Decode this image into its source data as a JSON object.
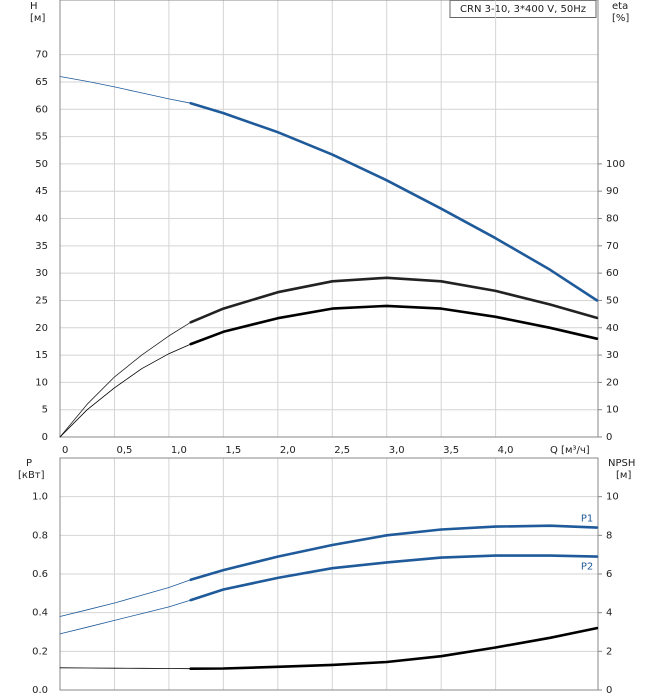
{
  "chart_data": [
    {
      "type": "line",
      "legend_text": "CRN 3-10, 3*400 V, 50Hz",
      "y_label": "H",
      "y_unit": "[м]",
      "y2_label": "eta",
      "y2_unit": "[%]",
      "x_label": "Q [м³/ч]",
      "x": [
        0,
        0.25,
        0.5,
        0.75,
        1.0,
        1.2,
        1.5,
        2.0,
        2.5,
        3.0,
        3.5,
        4.0,
        4.5,
        4.93
      ],
      "bold_from": 1.2,
      "xlim": [
        0,
        4.94
      ],
      "xticks": [
        0,
        {
          "value": 0.5,
          "label": "0,5"
        },
        {
          "value": 1.0,
          "label": "1,0"
        },
        {
          "value": 1.5,
          "label": "1,5"
        },
        {
          "value": 2.0,
          "label": "2,0"
        },
        {
          "value": 2.5,
          "label": "2,5"
        },
        {
          "value": 3.0,
          "label": "3,0"
        },
        {
          "value": 3.5,
          "label": "3,5"
        },
        {
          "value": 4.0,
          "label": "4,0"
        }
      ],
      "ylim": [
        0,
        80
      ],
      "yticks": [
        0,
        5,
        10,
        15,
        20,
        25,
        30,
        35,
        40,
        45,
        50,
        55,
        60,
        65,
        70
      ],
      "y2lim": [
        0,
        160
      ],
      "y2ticks": [
        0,
        10,
        20,
        30,
        40,
        50,
        60,
        70,
        80,
        90,
        100
      ],
      "grid": true,
      "series": [
        {
          "color": "#1f5a9a",
          "axis": "y",
          "values": [
            66,
            65.1,
            64.1,
            63,
            61.9,
            61.1,
            59.3,
            55.8,
            51.7,
            47,
            41.8,
            36.4,
            30.6,
            25
          ]
        },
        {
          "color": "#222222",
          "axis": "y2",
          "values": [
            0,
            12,
            22,
            30,
            37,
            42,
            47,
            53,
            57,
            58.3,
            57,
            53.5,
            48.5,
            43.6
          ]
        },
        {
          "color": "#000000",
          "axis": "y2",
          "values": [
            0,
            10,
            18,
            25,
            30.5,
            34,
            38.5,
            43.5,
            47,
            48,
            47,
            44,
            40,
            36
          ]
        }
      ]
    },
    {
      "type": "line",
      "y_label": "P",
      "y_unit": "[кВт]",
      "y2_label": "NPSH",
      "y2_unit": "[м]",
      "x": [
        0,
        0.25,
        0.5,
        0.75,
        1.0,
        1.2,
        1.5,
        2.0,
        2.5,
        3.0,
        3.5,
        4.0,
        4.5,
        4.93
      ],
      "bold_from": 1.2,
      "xlim": [
        0,
        4.94
      ],
      "xticks": [
        0,
        0.5,
        1.0,
        1.5,
        2.0,
        2.5,
        3.0,
        3.5,
        4.0
      ],
      "ylim": [
        0,
        1.2
      ],
      "yticks": [
        {
          "value": 0,
          "label": "0.0"
        },
        0.2,
        0.4,
        0.6,
        0.8,
        {
          "value": 1,
          "label": "1.0"
        }
      ],
      "y2lim": [
        0,
        12
      ],
      "y2ticks": [
        0,
        2,
        4,
        6,
        8,
        10
      ],
      "grid": true,
      "series": [
        {
          "name": "P1",
          "color": "#1f5a9a",
          "axis": "y",
          "values": [
            0.38,
            0.415,
            0.45,
            0.49,
            0.53,
            0.57,
            0.62,
            0.69,
            0.75,
            0.8,
            0.83,
            0.845,
            0.85,
            0.84
          ]
        },
        {
          "name": "P2",
          "color": "#1f5a9a",
          "axis": "y",
          "values": [
            0.29,
            0.325,
            0.36,
            0.395,
            0.43,
            0.465,
            0.52,
            0.58,
            0.63,
            0.66,
            0.685,
            0.695,
            0.695,
            0.69
          ]
        },
        {
          "color": "#000000",
          "axis": "y2",
          "values": [
            1.15,
            1.14,
            1.13,
            1.12,
            1.11,
            1.1,
            1.11,
            1.2,
            1.3,
            1.45,
            1.75,
            2.2,
            2.7,
            3.2
          ]
        }
      ]
    }
  ]
}
